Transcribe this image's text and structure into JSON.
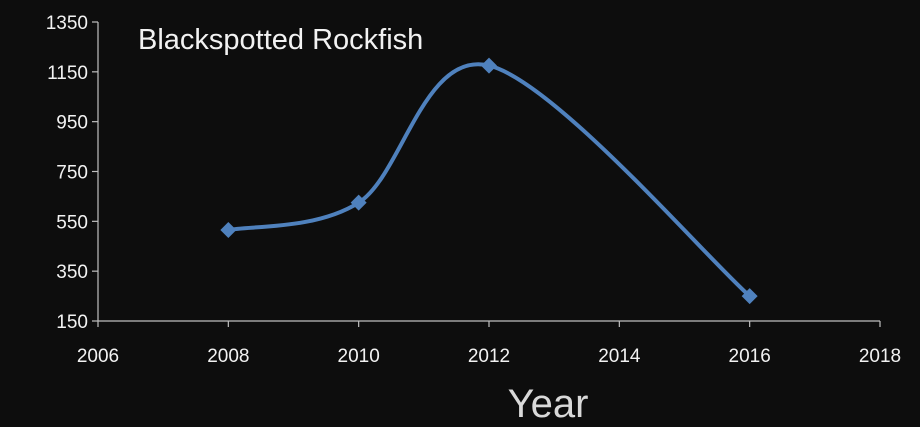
{
  "chart_data": {
    "type": "line",
    "title": "Blackspotted Rockfish",
    "xlabel": "Year",
    "ylabel": "",
    "xlim": [
      2006,
      2018
    ],
    "ylim": [
      150,
      1350
    ],
    "x_ticks": [
      2006,
      2008,
      2010,
      2012,
      2014,
      2016,
      2018
    ],
    "y_ticks": [
      150,
      350,
      550,
      750,
      950,
      1150,
      1350
    ],
    "grid": false,
    "smooth": true,
    "series": [
      {
        "color": "#4f81bd",
        "marker": "diamond",
        "x": [
          2008,
          2010,
          2012,
          2016
        ],
        "y": [
          515,
          625,
          1175,
          250
        ]
      }
    ]
  }
}
